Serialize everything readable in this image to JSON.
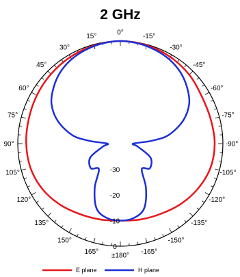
{
  "chart_data": {
    "type": "polar",
    "title": "2 GHz",
    "angle_tick_labels": [
      {
        "deg": 0,
        "label": "0°"
      },
      {
        "deg": -15,
        "label": "-15°"
      },
      {
        "deg": -30,
        "label": "-30°"
      },
      {
        "deg": -45,
        "label": "-45°"
      },
      {
        "deg": -60,
        "label": "-60°"
      },
      {
        "deg": -75,
        "label": "-75°"
      },
      {
        "deg": -90,
        "label": "-90°"
      },
      {
        "deg": -105,
        "label": "-105°"
      },
      {
        "deg": -120,
        "label": "-120°"
      },
      {
        "deg": -135,
        "label": "-135°"
      },
      {
        "deg": -150,
        "label": "-150°"
      },
      {
        "deg": -165,
        "label": "-165°"
      },
      {
        "deg": 180,
        "label": "±180°"
      },
      {
        "deg": 165,
        "label": "165°"
      },
      {
        "deg": 150,
        "label": "150°"
      },
      {
        "deg": 135,
        "label": "135°"
      },
      {
        "deg": 120,
        "label": "120°"
      },
      {
        "deg": 105,
        "label": "105°"
      },
      {
        "deg": 90,
        "label": "90°"
      },
      {
        "deg": 75,
        "label": "75°"
      },
      {
        "deg": 60,
        "label": "60°"
      },
      {
        "deg": 45,
        "label": "45°"
      },
      {
        "deg": 30,
        "label": "30°"
      },
      {
        "deg": 15,
        "label": "15°"
      }
    ],
    "radial_tick_labels": [
      "0",
      "-10",
      "-20",
      "-30"
    ],
    "rlim": [
      -40,
      0
    ],
    "legend_position": "bottom",
    "series": [
      {
        "name": "E plane",
        "color": "#e8151b",
        "points": [
          [
            0,
            0
          ],
          [
            15,
            -0.4
          ],
          [
            30,
            -1
          ],
          [
            45,
            -1.7
          ],
          [
            60,
            -2.4
          ],
          [
            75,
            -3
          ],
          [
            90,
            -3.3
          ],
          [
            105,
            -3.7
          ],
          [
            120,
            -4.8
          ],
          [
            135,
            -6.5
          ],
          [
            150,
            -8.3
          ],
          [
            165,
            -9.4
          ],
          [
            180,
            -10
          ],
          [
            -165,
            -9.4
          ],
          [
            -150,
            -8.4
          ],
          [
            -135,
            -6.7
          ],
          [
            -120,
            -5
          ],
          [
            -105,
            -3.6
          ],
          [
            -90,
            -3.2
          ],
          [
            -75,
            -3.5
          ],
          [
            -60,
            -3.3
          ],
          [
            -45,
            -2
          ],
          [
            -30,
            -1
          ],
          [
            -15,
            -0.3
          ]
        ]
      },
      {
        "name": "H plane",
        "color": "#1b2fd6",
        "points": [
          [
            0,
            0
          ],
          [
            10,
            -0.3
          ],
          [
            20,
            -1
          ],
          [
            30,
            -2
          ],
          [
            40,
            -3.6
          ],
          [
            50,
            -6
          ],
          [
            60,
            -9
          ],
          [
            70,
            -14
          ],
          [
            80,
            -21
          ],
          [
            85,
            -28
          ],
          [
            90,
            -35
          ],
          [
            100,
            -33
          ],
          [
            115,
            -27
          ],
          [
            130,
            -25
          ],
          [
            140,
            -27
          ],
          [
            150,
            -20
          ],
          [
            160,
            -13
          ],
          [
            170,
            -10.5
          ],
          [
            180,
            -10
          ],
          [
            -170,
            -10.5
          ],
          [
            -160,
            -13
          ],
          [
            -150,
            -20
          ],
          [
            -140,
            -27
          ],
          [
            -130,
            -25
          ],
          [
            -115,
            -27
          ],
          [
            -100,
            -33
          ],
          [
            -90,
            -35
          ],
          [
            -85,
            -28
          ],
          [
            -80,
            -21
          ],
          [
            -70,
            -14
          ],
          [
            -60,
            -9
          ],
          [
            -50,
            -6
          ],
          [
            -40,
            -3.6
          ],
          [
            -30,
            -2
          ],
          [
            -20,
            -1
          ],
          [
            -10,
            -0.3
          ]
        ]
      }
    ]
  }
}
